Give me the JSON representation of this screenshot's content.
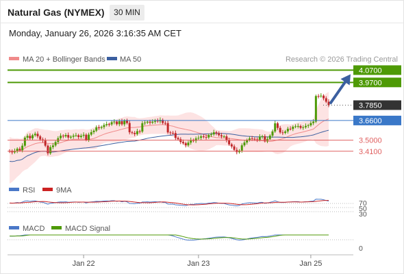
{
  "header": {
    "title": "Natural Gas (NYMEX)",
    "timeframe": "30 MIN"
  },
  "datetime": "Monday, January 26, 2026 3:16:35 AM CET",
  "chart_data": [
    {
      "type": "candlestick",
      "legend": [
        {
          "name": "MA 20 + Bollinger Bands",
          "color": "#f08a8a"
        },
        {
          "name": "MA 50",
          "color": "#3b5fa0"
        }
      ],
      "credit": "Research © 2026 Trading Central",
      "ylim": [
        3.18,
        4.1
      ],
      "x_ticks": [
        {
          "label": "Jan 22",
          "index": 29
        },
        {
          "label": "Jan 23",
          "index": 74
        },
        {
          "label": "Jan 25",
          "index": 118
        }
      ],
      "levels": [
        {
          "value": 4.07,
          "label": "4.0700",
          "kind": "resistance",
          "color": "#4e9a06"
        },
        {
          "value": 3.97,
          "label": "3.9700",
          "kind": "resistance",
          "color": "#4e9a06"
        },
        {
          "value": 3.785,
          "label": "3.7850",
          "kind": "last",
          "color": "#333333"
        },
        {
          "value": 3.66,
          "label": "3.6600",
          "kind": "pivot",
          "color": "#3a78c8"
        },
        {
          "value": 3.5,
          "label": "3.5000",
          "kind": "support",
          "color": "#e06060"
        },
        {
          "value": 3.41,
          "label": "3.4100",
          "kind": "support",
          "color": "#e06060"
        }
      ],
      "closes": [
        3.408,
        3.401,
        3.412,
        3.43,
        3.418,
        3.455,
        3.52,
        3.535,
        3.515,
        3.54,
        3.552,
        3.531,
        3.506,
        3.497,
        3.455,
        3.393,
        3.443,
        3.457,
        3.485,
        3.516,
        3.536,
        3.531,
        3.542,
        3.521,
        3.528,
        3.537,
        3.54,
        3.525,
        3.536,
        3.544,
        3.503,
        3.545,
        3.565,
        3.577,
        3.604,
        3.6,
        3.607,
        3.623,
        3.631,
        3.628,
        3.646,
        3.651,
        3.63,
        3.654,
        3.629,
        3.659,
        3.64,
        3.564,
        3.559,
        3.549,
        3.573,
        3.57,
        3.638,
        3.643,
        3.65,
        3.642,
        3.65,
        3.661,
        3.653,
        3.665,
        3.64,
        3.639,
        3.563,
        3.559,
        3.558,
        3.518,
        3.508,
        3.485,
        3.475,
        3.458,
        3.48,
        3.501,
        3.494,
        3.514,
        3.519,
        3.531,
        3.525,
        3.522,
        3.542,
        3.547,
        3.564,
        3.556,
        3.54,
        3.53,
        3.531,
        3.499,
        3.466,
        3.449,
        3.421,
        3.402,
        3.415,
        3.458,
        3.481,
        3.501,
        3.514,
        3.511,
        3.506,
        3.502,
        3.528,
        3.532,
        3.493,
        3.51,
        3.537,
        3.571,
        3.637,
        3.6,
        3.563,
        3.559,
        3.571,
        3.593,
        3.591,
        3.609,
        3.613,
        3.615,
        3.6,
        3.605,
        3.616,
        3.621,
        3.639,
        3.651,
        3.859,
        3.857,
        3.862,
        3.841,
        3.813,
        3.785
      ],
      "ma50_end": 3.6
    },
    {
      "type": "line",
      "legend": [
        {
          "name": "RSI",
          "color": "#4a78c8"
        },
        {
          "name": "9MA",
          "color": "#cc2222"
        }
      ],
      "ylim": [
        0,
        100
      ],
      "y_ticks": [
        "70",
        "50",
        "30"
      ]
    },
    {
      "type": "line",
      "legend": [
        {
          "name": "MACD",
          "color": "#4a78c8"
        },
        {
          "name": "MACD Signal",
          "color": "#4e9a06"
        }
      ],
      "y_ticks": [
        "0"
      ]
    }
  ],
  "colors": {
    "bull": "#4e9a06",
    "bear": "#c0282a",
    "band": "#fde3e3",
    "grid": "#e6e6e6"
  },
  "annotation": {
    "type": "arrow-up",
    "color": "#3b5fa0"
  }
}
